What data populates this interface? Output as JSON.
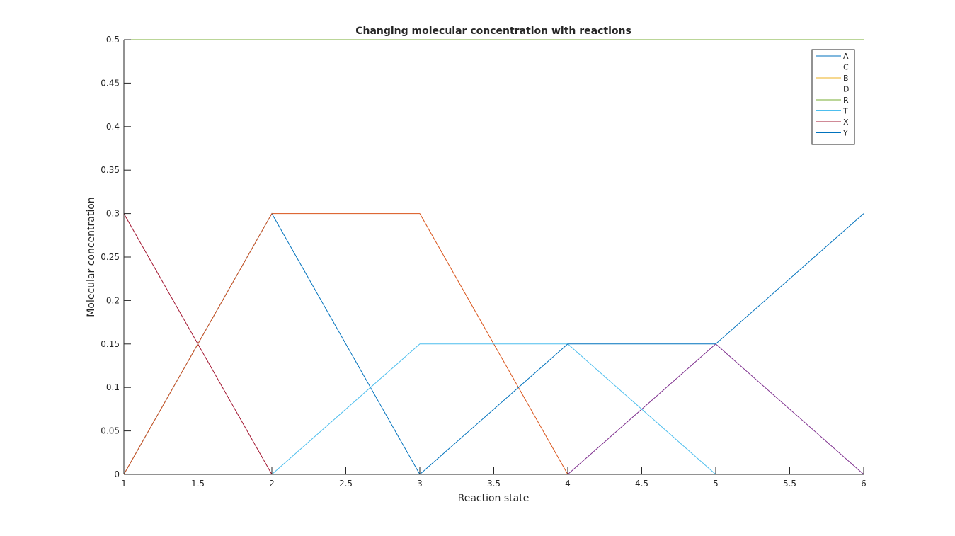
{
  "chart_data": {
    "type": "line",
    "title": "Changing molecular concentration with reactions",
    "xlabel": "Reaction state",
    "ylabel": "Molecular concentration",
    "xlim": [
      1,
      6
    ],
    "ylim": [
      0,
      0.5
    ],
    "x": [
      1,
      2,
      3,
      4,
      5,
      6
    ],
    "xticks": [
      1,
      1.5,
      2,
      2.5,
      3,
      3.5,
      4,
      4.5,
      5,
      5.5,
      6
    ],
    "xtick_labels": [
      "1",
      "1.5",
      "2",
      "2.5",
      "3",
      "3.5",
      "4",
      "4.5",
      "5",
      "5.5",
      "6"
    ],
    "yticks": [
      0,
      0.05,
      0.1,
      0.15,
      0.2,
      0.25,
      0.3,
      0.35,
      0.4,
      0.45,
      0.5
    ],
    "ytick_labels": [
      "0",
      "0.05",
      "0.1",
      "0.15",
      "0.2",
      "0.25",
      "0.3",
      "0.35",
      "0.4",
      "0.45",
      "0.5"
    ],
    "grid": false,
    "legend_position": "top-right",
    "series": [
      {
        "name": "A",
        "color": "#0072BD",
        "values": [
          0,
          0.3,
          0,
          0,
          0,
          0
        ]
      },
      {
        "name": "C",
        "color": "#D95319",
        "values": [
          0,
          0.3,
          0.3,
          0,
          0,
          0
        ]
      },
      {
        "name": "B",
        "color": "#EDB120",
        "values": [
          0.5,
          0.5,
          0.5,
          0.5,
          0.5,
          0.5
        ]
      },
      {
        "name": "D",
        "color": "#7E2F8E",
        "values": [
          0,
          0,
          0,
          0,
          0.15,
          0
        ]
      },
      {
        "name": "R",
        "color": "#77AC30",
        "values": [
          0.5,
          0.5,
          0.5,
          0.5,
          0.5,
          0.5
        ]
      },
      {
        "name": "T",
        "color": "#4DBEEE",
        "values": [
          0,
          0,
          0.15,
          0.15,
          0,
          0
        ]
      },
      {
        "name": "X",
        "color": "#A2142F",
        "values": [
          0.3,
          0,
          0,
          0,
          0,
          0
        ]
      },
      {
        "name": "Y",
        "color": "#0072BD",
        "values": [
          0,
          0,
          0,
          0.15,
          0.15,
          0.3
        ]
      }
    ]
  }
}
